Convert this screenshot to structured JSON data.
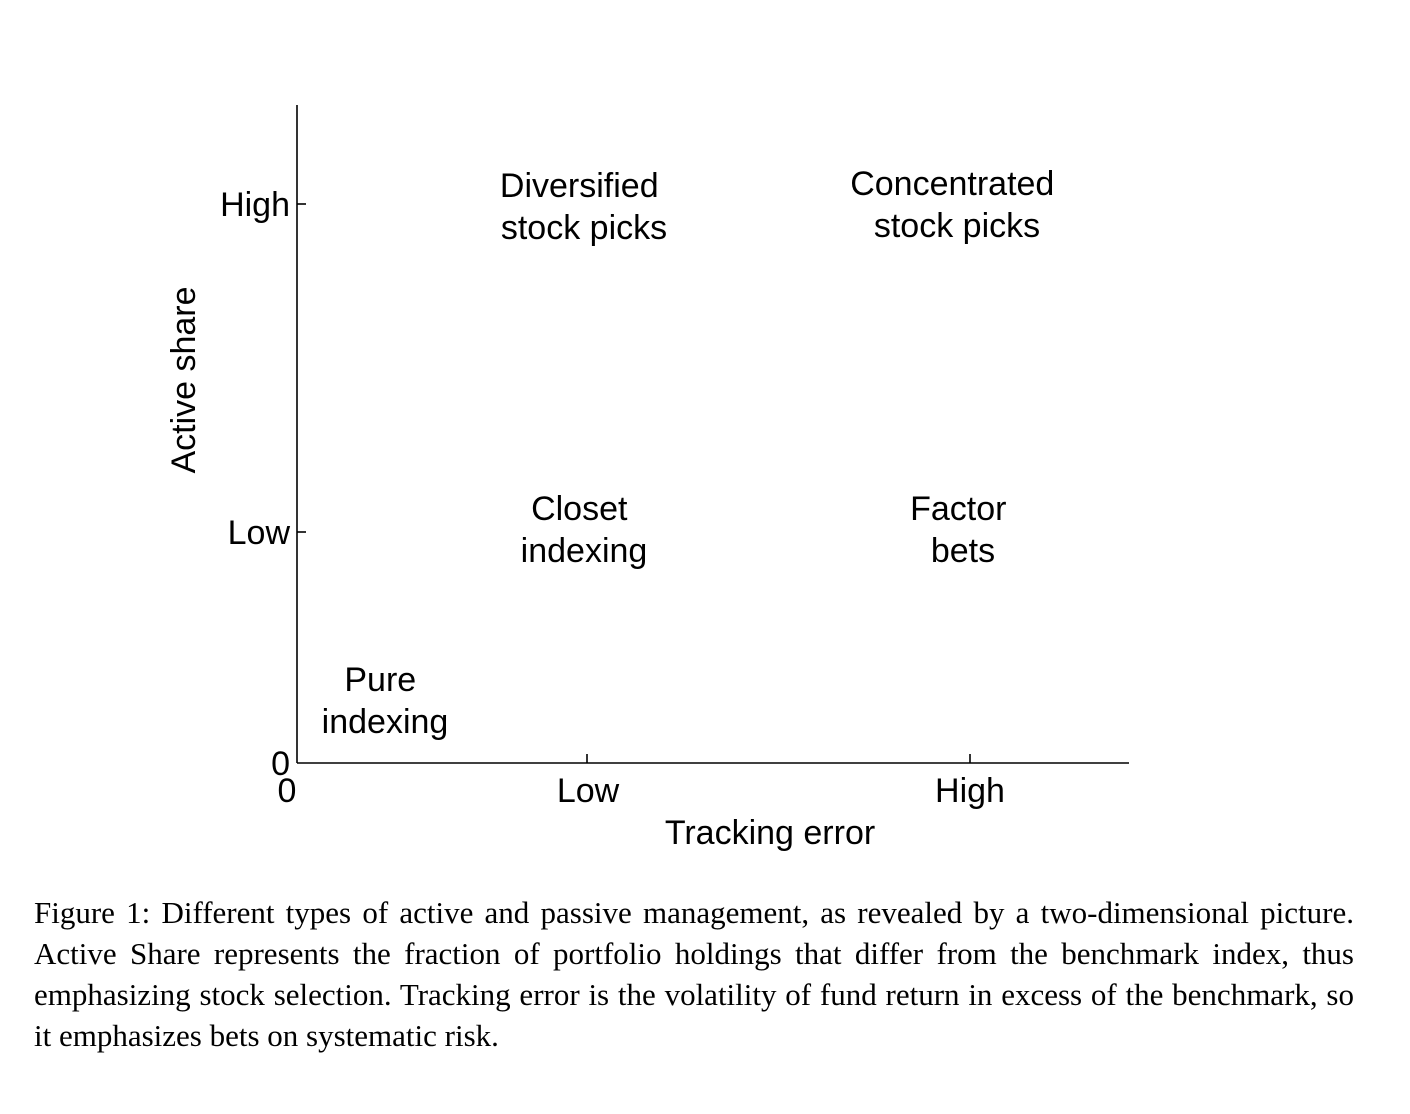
{
  "diagram": {
    "axes": {
      "x_title": "Tracking error",
      "y_title": "Active share",
      "x_origin_label": "0",
      "y_origin_label": "0",
      "x_ticks": [
        "Low",
        "High"
      ],
      "y_ticks": [
        "High",
        "Low"
      ]
    },
    "quadrants": {
      "diversified": {
        "line1": "Diversified",
        "line2": "stock picks"
      },
      "concentrated": {
        "line1": "Concentrated",
        "line2": "stock picks"
      },
      "closet": {
        "line1": "Closet",
        "line2": "indexing"
      },
      "factor": {
        "line1": "Factor",
        "line2": "bets"
      },
      "pure": {
        "line1": "Pure",
        "line2": "indexing"
      }
    }
  },
  "caption": {
    "text": "Figure 1:  Different types of active and passive management, as revealed by a two-dimensional picture. Active Share represents the fraction of portfolio holdings that differ from the benchmark index, thus emphasizing stock selection. Tracking error is the volatility of fund return in excess of the benchmark, so it emphasizes bets on systematic risk."
  }
}
